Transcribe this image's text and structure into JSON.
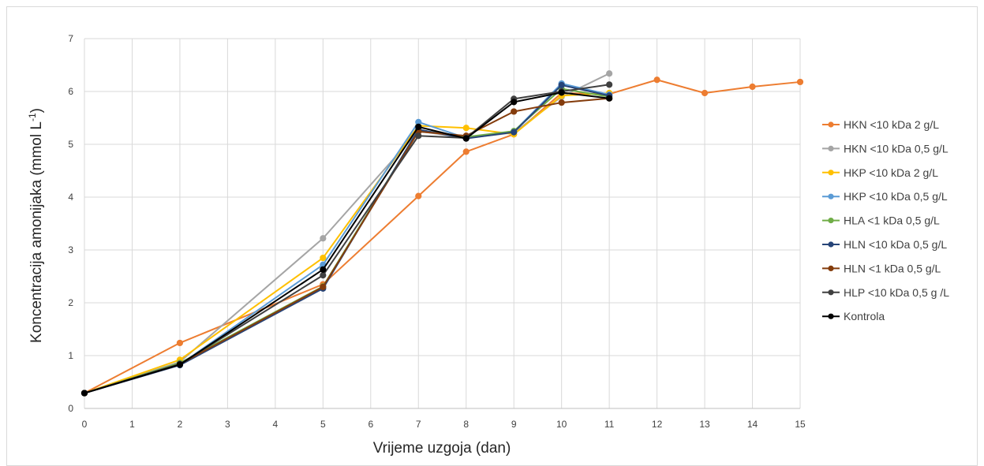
{
  "chart_data": {
    "type": "line",
    "title": "",
    "xlabel": "Vrijeme uzgoja (dan)",
    "ylabel_main": "Koncentracija amonijaka (mmol L",
    "ylabel_sup": "-1",
    "ylabel_end": ")",
    "xlim": [
      0,
      15
    ],
    "ylim": [
      0,
      7
    ],
    "x_ticks": [
      "0",
      "1",
      "2",
      "3",
      "4",
      "5",
      "6",
      "7",
      "8",
      "9",
      "10",
      "11",
      "12",
      "13",
      "14",
      "15"
    ],
    "y_ticks": [
      "0",
      "1",
      "2",
      "3",
      "4",
      "5",
      "6",
      "7"
    ],
    "grid": true,
    "legend_position": "right",
    "series": [
      {
        "name": "HKN <10 kDa 2 g/L",
        "color": "#ED7D31",
        "x": [
          0,
          2,
          5,
          7,
          8,
          9,
          10,
          11,
          12,
          13,
          14,
          15
        ],
        "y": [
          0.29,
          1.24,
          2.35,
          4.02,
          4.86,
          5.19,
          5.97,
          5.95,
          6.22,
          5.97,
          6.09,
          6.18
        ]
      },
      {
        "name": "HKN <10 kDa 0,5 g/L",
        "color": "#A5A5A5",
        "x": [
          0,
          2,
          5,
          7,
          8,
          9,
          10,
          11
        ],
        "y": [
          0.29,
          0.88,
          3.22,
          5.25,
          5.12,
          5.22,
          5.9,
          6.34
        ]
      },
      {
        "name": "HKP <10 kDa 2 g/L",
        "color": "#FFC000",
        "x": [
          0,
          2,
          5,
          7,
          8,
          9,
          10,
          11
        ],
        "y": [
          0.29,
          0.92,
          2.85,
          5.35,
          5.31,
          5.19,
          5.92,
          5.97
        ]
      },
      {
        "name": "HKP <10 kDa 0,5 g/L",
        "color": "#5B9BD5",
        "x": [
          0,
          2,
          5,
          7,
          8,
          9,
          10,
          11
        ],
        "y": [
          0.29,
          0.83,
          2.72,
          5.42,
          5.12,
          5.24,
          6.15,
          5.94
        ]
      },
      {
        "name": "HLA <1 kDa 0,5 g/L",
        "color": "#70AD47",
        "x": [
          0,
          2,
          5,
          7,
          8,
          9,
          10,
          11
        ],
        "y": [
          0.29,
          0.86,
          2.31,
          5.27,
          5.14,
          5.25,
          6.05,
          5.9
        ]
      },
      {
        "name": "HLN <10 kDa 0,5 g/L",
        "color": "#264478",
        "x": [
          0,
          2,
          5,
          7,
          8,
          9,
          10,
          11
        ],
        "y": [
          0.29,
          0.82,
          2.27,
          5.28,
          5.11,
          5.23,
          6.12,
          5.92
        ]
      },
      {
        "name": "HLN <1 kDa 0,5 g/L",
        "color": "#843C0C",
        "x": [
          0,
          2,
          5,
          7,
          8,
          9,
          10,
          11
        ],
        "y": [
          0.29,
          0.84,
          2.3,
          5.24,
          5.16,
          5.62,
          5.79,
          5.87
        ]
      },
      {
        "name": "HLP <10 kDa 0,5 g /L",
        "color": "#404040",
        "x": [
          0,
          2,
          5,
          7,
          8,
          9,
          10,
          11
        ],
        "y": [
          0.29,
          0.84,
          2.52,
          5.16,
          5.12,
          5.86,
          6.0,
          6.13
        ]
      },
      {
        "name": "Kontrola",
        "color": "#000000",
        "x": [
          0,
          2,
          5,
          7,
          8,
          9,
          10,
          11
        ],
        "y": [
          0.29,
          0.83,
          2.63,
          5.33,
          5.11,
          5.8,
          5.98,
          5.87
        ]
      }
    ]
  }
}
